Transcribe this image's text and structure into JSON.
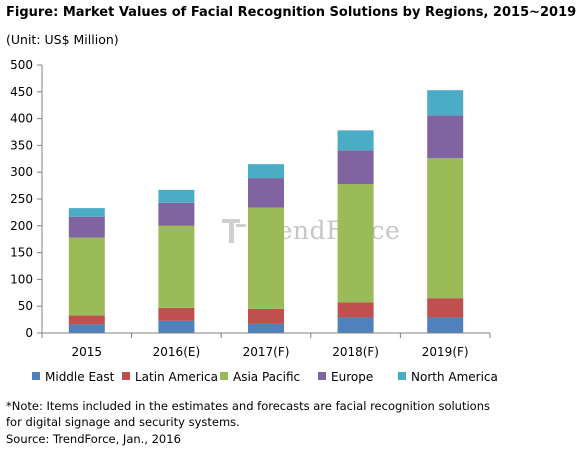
{
  "title": "Figure: Market Values of Facial Recognition Solutions by Regions, 2015~2019",
  "unit": "(Unit: US$ Million)",
  "watermark": "TrendForce",
  "note": "*Note: Items included in the estimates and forecasts are facial recognition solutions for digital signage and security systems.",
  "source": "Source: TrendForce, Jan., 2016",
  "chart_data": {
    "type": "bar",
    "stacked": true,
    "categories": [
      "2015",
      "2016(E)",
      "2017(F)",
      "2018(F)",
      "2019(F)"
    ],
    "series": [
      {
        "name": "Middle East",
        "color": "#4f81bd",
        "values": [
          16,
          23,
          17,
          29,
          29
        ]
      },
      {
        "name": "Latin America",
        "color": "#c0504d",
        "values": [
          17,
          24,
          28,
          28,
          36
        ]
      },
      {
        "name": "Asia Pacific",
        "color": "#9bbb59",
        "values": [
          145,
          153,
          189,
          221,
          261
        ]
      },
      {
        "name": "Europe",
        "color": "#8064a2",
        "values": [
          39,
          43,
          55,
          63,
          80
        ]
      },
      {
        "name": "North America",
        "color": "#4bacc6",
        "values": [
          16,
          24,
          26,
          37,
          47
        ]
      }
    ],
    "ylim": [
      0,
      500
    ],
    "yticks": [
      0,
      50,
      100,
      150,
      200,
      250,
      300,
      350,
      400,
      450,
      500
    ],
    "grid": false,
    "legend": "bottom"
  }
}
